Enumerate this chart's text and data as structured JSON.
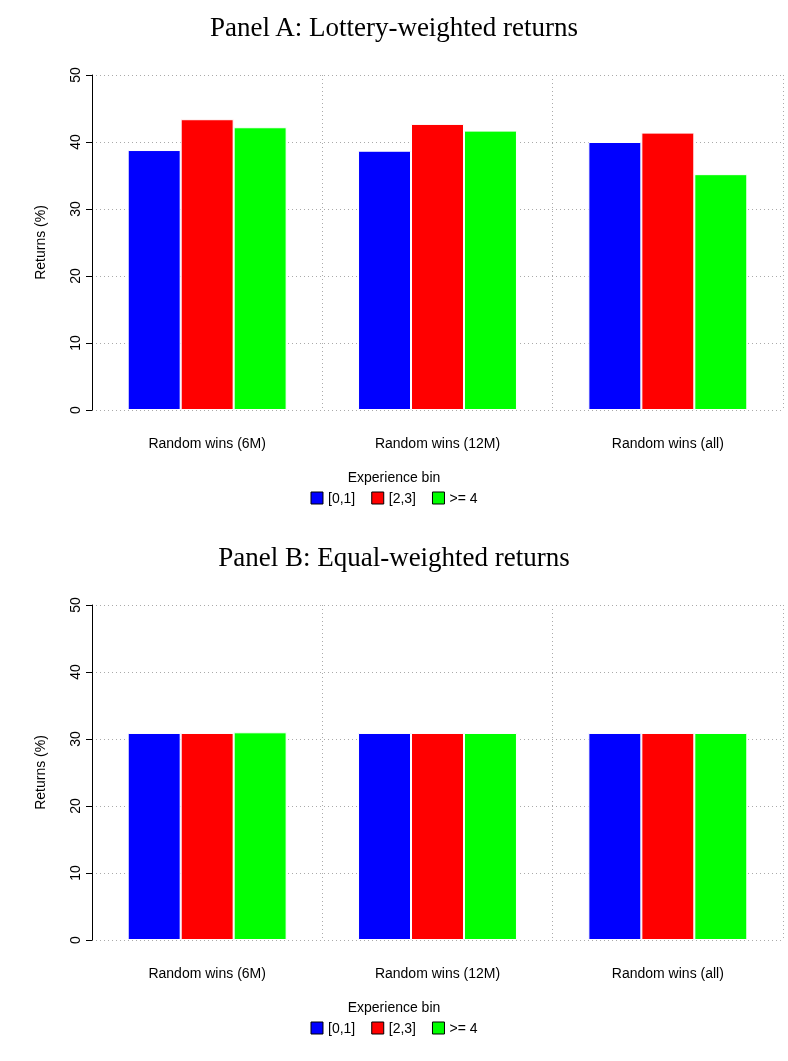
{
  "chart_data": [
    {
      "type": "bar",
      "title": "Panel A: Lottery-weighted returns",
      "ylabel": "Returns (%)",
      "legend_title": "Experience bin",
      "categories": [
        "Random wins (6M)",
        "Random wins (12M)",
        "Random wins (all)"
      ],
      "series": [
        {
          "name": "[0,1]",
          "color": "#0000ff",
          "values": [
            38.8,
            38.7,
            40.0
          ]
        },
        {
          "name": "[2,3]",
          "color": "#ff0000",
          "values": [
            43.4,
            42.7,
            41.4
          ]
        },
        {
          "name": ">= 4",
          "color": "#00ff00",
          "values": [
            42.2,
            41.7,
            35.2
          ]
        }
      ],
      "ylim": [
        0,
        50
      ],
      "yticks": [
        0,
        10,
        20,
        30,
        40,
        50
      ],
      "grid": true,
      "legend": "bottom"
    },
    {
      "type": "bar",
      "title": "Panel B: Equal-weighted returns",
      "ylabel": "Returns (%)",
      "legend_title": "Experience bin",
      "categories": [
        "Random wins (6M)",
        "Random wins (12M)",
        "Random wins (all)"
      ],
      "series": [
        {
          "name": "[0,1]",
          "color": "#0000ff",
          "values": [
            30.9,
            30.9,
            30.9
          ]
        },
        {
          "name": "[2,3]",
          "color": "#ff0000",
          "values": [
            30.9,
            30.9,
            30.9
          ]
        },
        {
          "name": ">= 4",
          "color": "#00ff00",
          "values": [
            31.0,
            30.9,
            30.9
          ]
        }
      ],
      "ylim": [
        0,
        50
      ],
      "yticks": [
        0,
        10,
        20,
        30,
        40,
        50
      ],
      "grid": true,
      "legend": "bottom"
    }
  ]
}
